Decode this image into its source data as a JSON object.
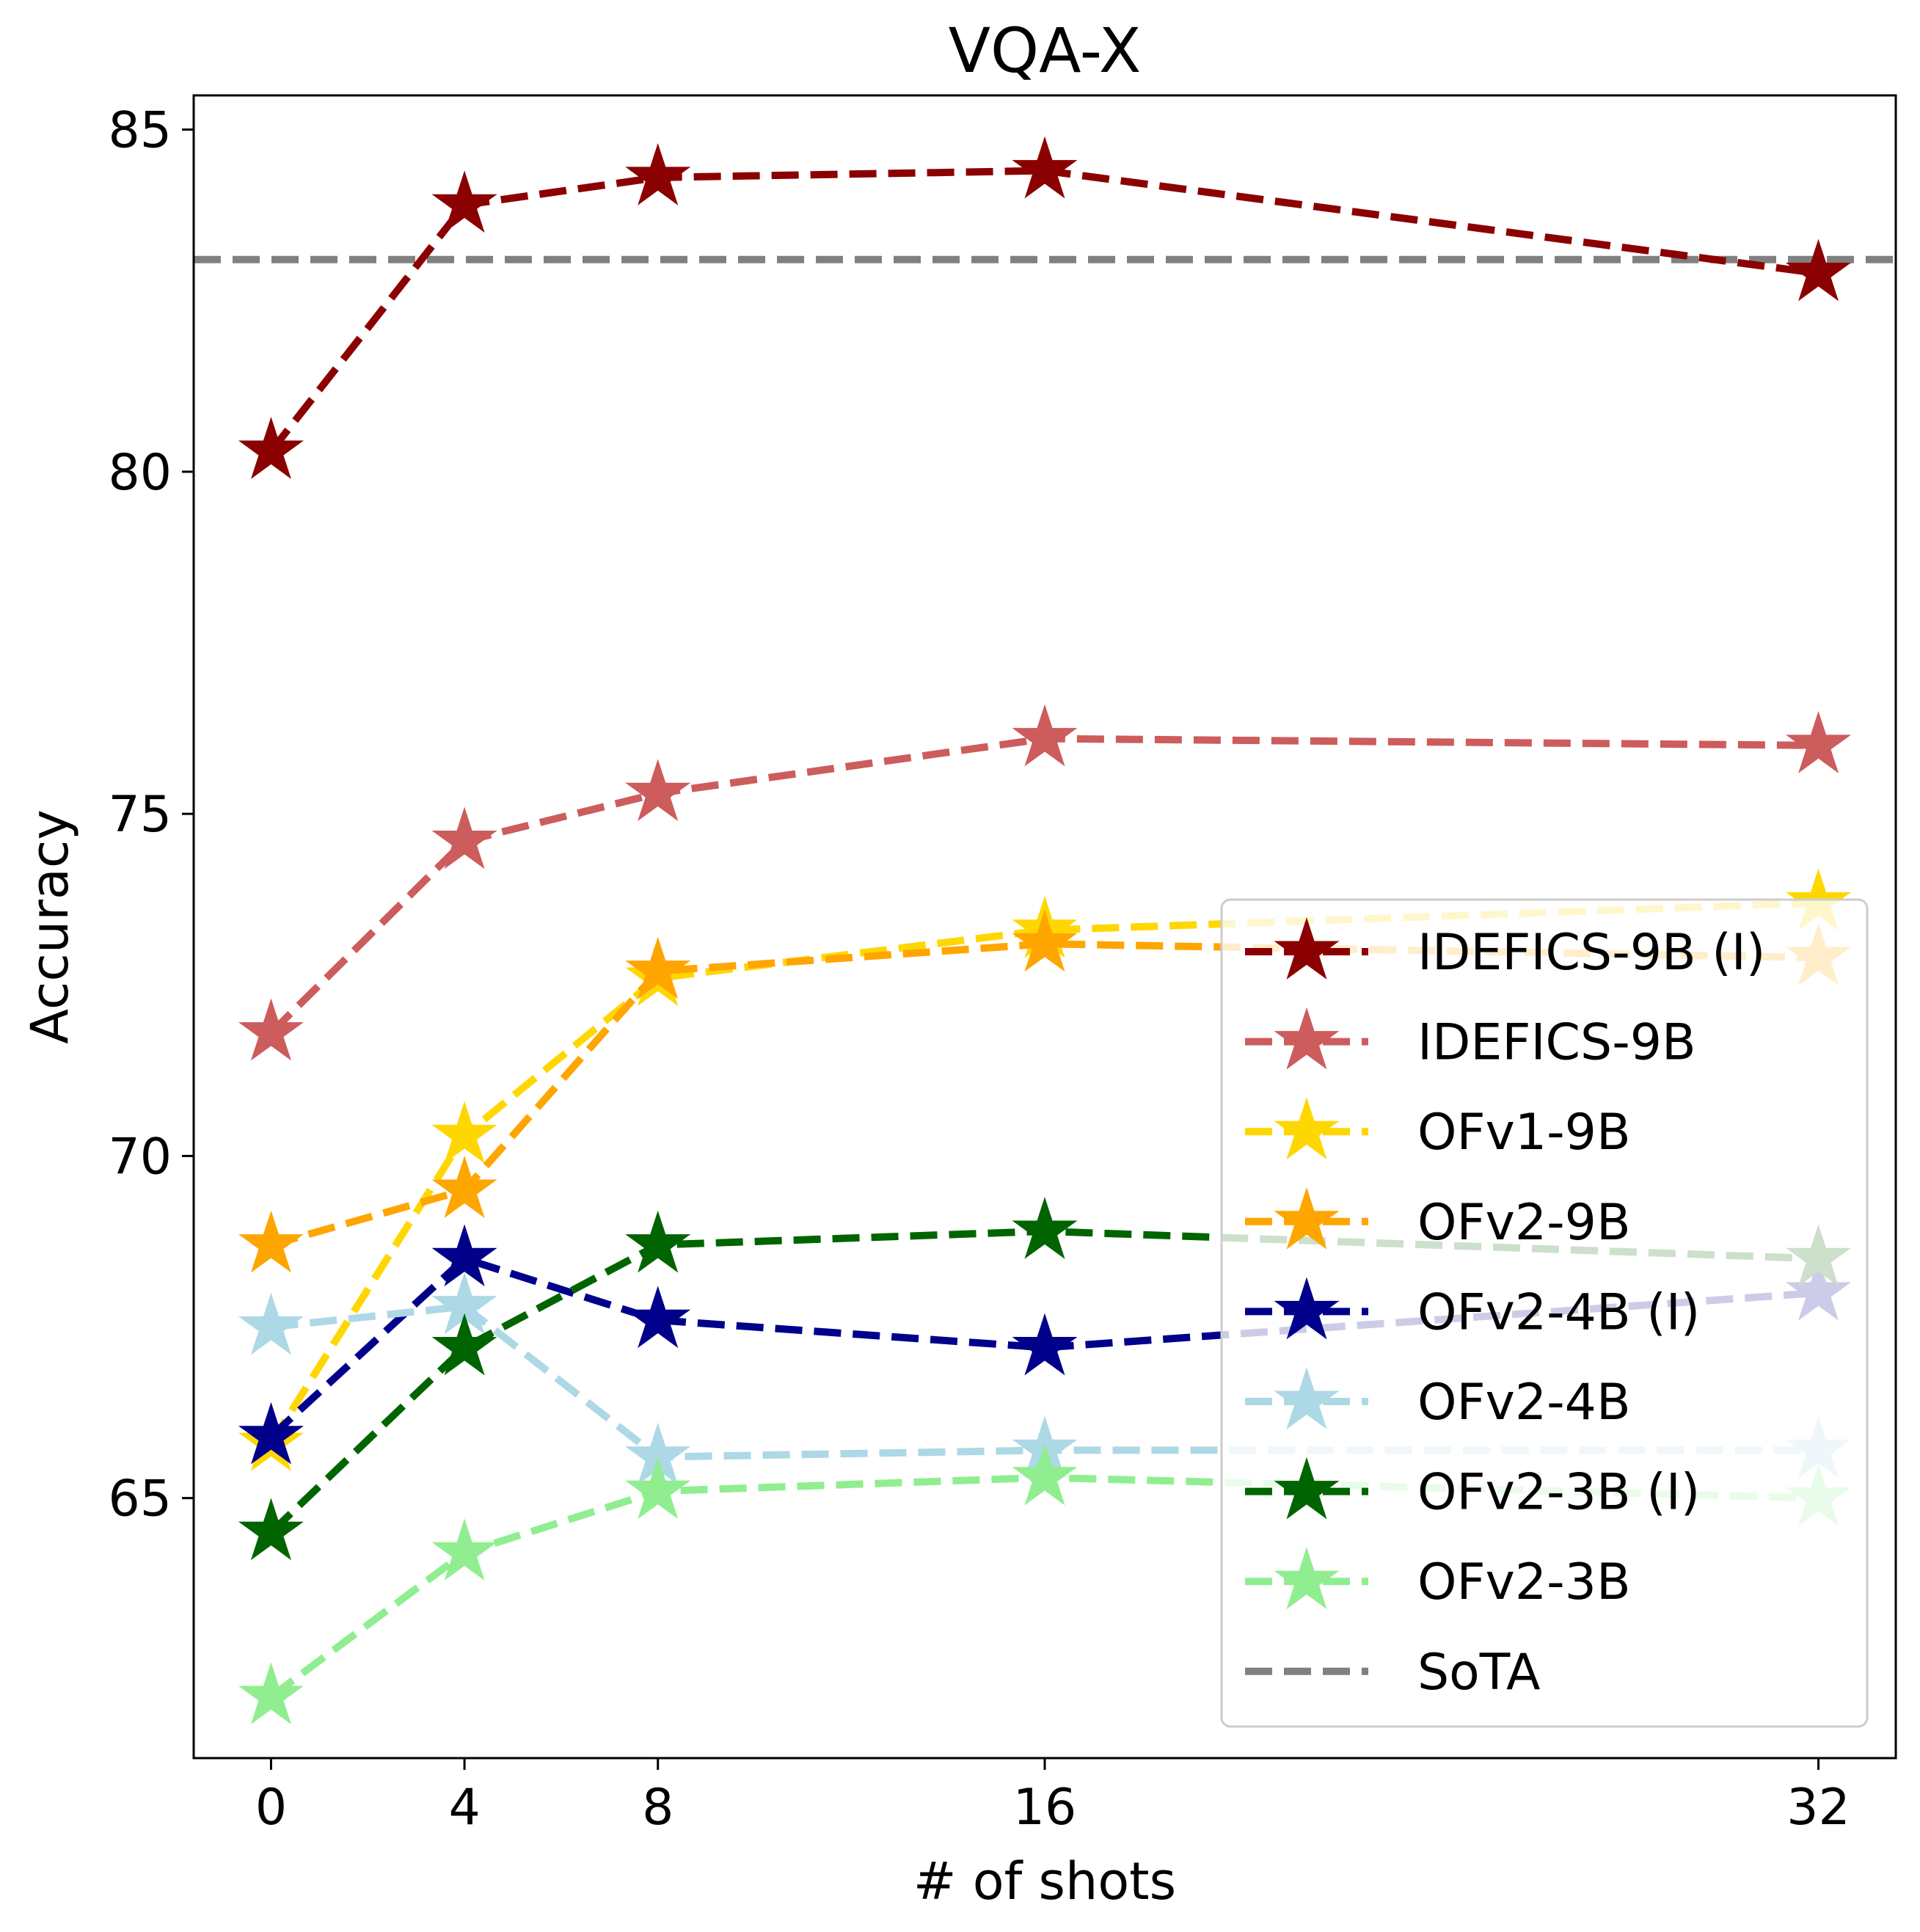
{
  "chart_data": {
    "type": "line",
    "title": "VQA-X",
    "xlabel": "# of shots",
    "ylabel": "Accuracy",
    "x": [
      0,
      4,
      8,
      16,
      32
    ],
    "xticks": [
      "0",
      "4",
      "8",
      "16",
      "32"
    ],
    "xlim": [
      -1.6,
      33.6
    ],
    "ylim": [
      61.2,
      85.5
    ],
    "yticks": [
      "65",
      "70",
      "75",
      "80",
      "85"
    ],
    "grid": false,
    "legend_position": "lower-right",
    "series": [
      {
        "name": "IDEFICS-9B (I)",
        "color": "#8b0000",
        "marker": "star",
        "linestyle": "dashed",
        "values": [
          80.3,
          83.9,
          84.3,
          84.4,
          82.9
        ]
      },
      {
        "name": "IDEFICS-9B",
        "color": "#cd5c5c",
        "marker": "star",
        "linestyle": "dashed",
        "values": [
          71.8,
          74.6,
          75.3,
          76.1,
          76.0
        ]
      },
      {
        "name": "OFv1-9B",
        "color": "#ffd700",
        "marker": "star",
        "linestyle": "dashed",
        "values": [
          65.8,
          70.3,
          72.6,
          73.3,
          73.7
        ]
      },
      {
        "name": "OFv2-9B",
        "color": "#ffa500",
        "marker": "star",
        "linestyle": "dashed",
        "values": [
          68.7,
          69.5,
          72.7,
          73.1,
          72.9
        ]
      },
      {
        "name": "OFv2-4B (I)",
        "color": "#00008b",
        "marker": "star",
        "linestyle": "dashed",
        "values": [
          65.9,
          68.5,
          67.6,
          67.2,
          68.0
        ]
      },
      {
        "name": "OFv2-4B",
        "color": "#add8e6",
        "marker": "star",
        "linestyle": "dashed",
        "values": [
          67.5,
          67.8,
          65.6,
          65.7,
          65.7
        ]
      },
      {
        "name": "OFv2-3B (I)",
        "color": "#006400",
        "marker": "star",
        "linestyle": "dashed",
        "values": [
          64.5,
          67.2,
          68.7,
          68.9,
          68.5
        ]
      },
      {
        "name": "OFv2-3B",
        "color": "#90ee90",
        "marker": "star",
        "linestyle": "dashed",
        "values": [
          62.1,
          64.2,
          65.1,
          65.3,
          65.0
        ]
      }
    ],
    "reference_lines": [
      {
        "name": "SoTA",
        "color": "#808080",
        "linestyle": "dashed",
        "value": 83.1
      }
    ]
  }
}
